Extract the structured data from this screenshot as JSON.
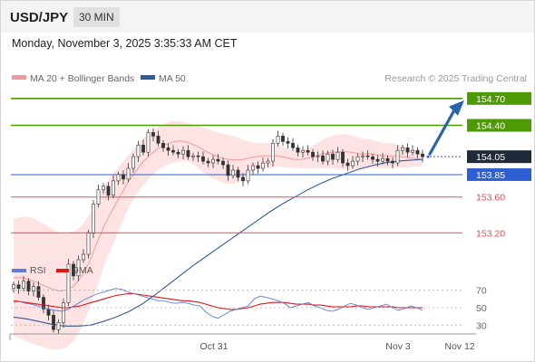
{
  "header": {
    "symbol": "USD/JPY",
    "timeframe": "30 MIN",
    "timestamp": "Monday, November 3, 2025 3:35:33 AM CET"
  },
  "legend": {
    "bollinger_label": "MA 20 + Bollinger Bands",
    "bollinger_color": "#f29a9a",
    "ma50_label": "MA 50",
    "ma50_color": "#2e5c9e",
    "credit": "Research © 2025 Trading Central"
  },
  "rsi_legend": {
    "rsi_label": "RSI",
    "rsi_color": "#5b7fd6",
    "ma9_label": "9MA",
    "ma9_color": "#e21515"
  },
  "colors": {
    "resistance": "#4e9a06",
    "support": "#e05050",
    "pivot": "#2d5fd3",
    "forecast_arrow": "#2a63ad",
    "current_price_tag": "#1f2a3a",
    "band_fill": "#fde3e3"
  },
  "chart_data": [
    {
      "type": "candlestick",
      "title": "USD/JPY 30 MIN",
      "ylim": [
        152.9,
        154.9
      ],
      "x_ticks": [
        "Oct 31",
        "Nov 3",
        "Nov 12"
      ],
      "levels": [
        {
          "label": "154.70",
          "value": 154.7,
          "kind": "resistance"
        },
        {
          "label": "154.40",
          "value": 154.4,
          "kind": "resistance"
        },
        {
          "label": "153.85",
          "value": 153.85,
          "kind": "pivot"
        },
        {
          "label": "153.60",
          "value": 153.6,
          "kind": "support"
        },
        {
          "label": "153.20",
          "value": 153.2,
          "kind": "support"
        }
      ],
      "current_price": {
        "label": "154.05",
        "value": 154.05
      },
      "forecast_target": 154.7,
      "close": [
        152.62,
        152.58,
        152.66,
        152.55,
        152.6,
        152.48,
        152.35,
        152.28,
        152.12,
        152.2,
        152.42,
        152.85,
        152.72,
        152.9,
        152.96,
        153.2,
        153.52,
        153.68,
        153.72,
        153.62,
        153.78,
        153.85,
        153.8,
        153.92,
        154.05,
        154.18,
        154.1,
        154.32,
        154.28,
        154.2,
        154.15,
        154.12,
        154.1,
        154.08,
        154.12,
        154.05,
        154.06,
        154.05,
        154.0,
        153.98,
        154.02,
        154.0,
        153.96,
        153.84,
        153.9,
        153.82,
        153.78,
        153.9,
        153.95,
        153.92,
        153.98,
        154.0,
        154.2,
        154.28,
        154.22,
        154.2,
        154.15,
        154.1,
        154.12,
        154.1,
        154.05,
        154.06,
        154.0,
        154.08,
        154.02,
        154.1,
        153.98,
        153.95,
        154.0,
        154.05,
        154.06,
        154.05,
        154.02,
        154.0,
        154.03,
        154.0,
        153.98,
        154.12,
        154.15,
        154.1,
        154.12,
        154.08,
        154.05
      ],
      "upper_band": [
        153.35,
        153.38,
        153.38,
        153.35,
        153.3,
        153.25,
        153.2,
        153.2,
        153.22,
        153.28,
        153.4,
        153.58,
        153.72,
        153.85,
        153.95,
        154.05,
        154.15,
        154.25,
        154.32,
        154.38,
        154.42,
        154.45,
        154.45,
        154.42,
        154.4,
        154.38,
        154.35,
        154.32,
        154.3,
        154.28,
        154.25,
        154.22,
        154.2,
        154.2,
        154.2,
        154.18,
        154.15,
        154.12,
        154.12,
        154.15,
        154.2,
        154.25,
        154.28,
        154.3,
        154.3,
        154.28,
        154.25,
        154.25,
        154.22,
        154.2,
        154.2,
        154.18,
        154.15,
        154.12,
        154.1
      ],
      "lower_band": [
        152.05,
        152.02,
        151.98,
        151.95,
        151.92,
        151.9,
        151.9,
        151.92,
        152.0,
        152.15,
        152.35,
        152.6,
        152.85,
        153.05,
        153.25,
        153.45,
        153.6,
        153.72,
        153.82,
        153.9,
        153.95,
        153.98,
        154.0,
        154.0,
        153.95,
        153.88,
        153.82,
        153.78,
        153.75,
        153.75,
        153.78,
        153.85,
        153.9,
        153.92,
        153.92,
        153.94,
        153.93,
        153.92,
        153.92,
        153.92,
        153.92,
        153.92,
        153.92,
        153.91,
        153.91,
        153.91,
        153.91,
        153.92,
        153.92,
        153.92,
        153.92,
        153.93,
        153.93,
        153.94,
        153.94
      ],
      "ma50": [
        152.26,
        152.24,
        152.21,
        152.18,
        152.16,
        152.16,
        152.17,
        152.21,
        152.26,
        152.32,
        152.4,
        152.5,
        152.61,
        152.72,
        152.83,
        152.93,
        153.03,
        153.13,
        153.23,
        153.33,
        153.43,
        153.52,
        153.6,
        153.68,
        153.75,
        153.81,
        153.86,
        153.91,
        153.95,
        153.98,
        154.0,
        154.01,
        154.02
      ]
    },
    {
      "type": "line",
      "title": "RSI",
      "ylim": [
        20,
        80
      ],
      "y_ticks": [
        "70",
        "50",
        "30"
      ],
      "series": [
        {
          "name": "RSI",
          "values": [
            56,
            57,
            55,
            54,
            52,
            50,
            48,
            47,
            46,
            48,
            52,
            56,
            60,
            63,
            66,
            68,
            70,
            72,
            71,
            68,
            66,
            64,
            62,
            60,
            58,
            58,
            56,
            55,
            56,
            55,
            53,
            52,
            45,
            40,
            38,
            42,
            46,
            48,
            50,
            52,
            60,
            63,
            62,
            60,
            58,
            55,
            50,
            52,
            54,
            56,
            52,
            50,
            47,
            46,
            48,
            52,
            55,
            53,
            50,
            48,
            50,
            52,
            54,
            50,
            47,
            49,
            52,
            50,
            47
          ]
        },
        {
          "name": "9MA",
          "values": [
            58,
            57,
            56,
            55,
            54,
            53,
            52,
            51,
            50,
            50,
            51,
            52,
            54,
            56,
            58,
            60,
            62,
            64,
            65,
            66,
            66,
            65,
            64,
            63,
            62,
            61,
            60,
            59,
            58,
            58,
            57,
            56,
            54,
            52,
            50,
            49,
            48,
            48,
            49,
            50,
            52,
            54,
            55,
            56,
            56,
            56,
            55,
            54,
            54,
            54,
            53,
            53,
            52,
            51,
            51,
            51,
            51,
            52,
            52,
            51,
            51,
            51,
            51,
            51,
            50,
            50,
            50,
            50,
            50
          ]
        }
      ]
    }
  ]
}
